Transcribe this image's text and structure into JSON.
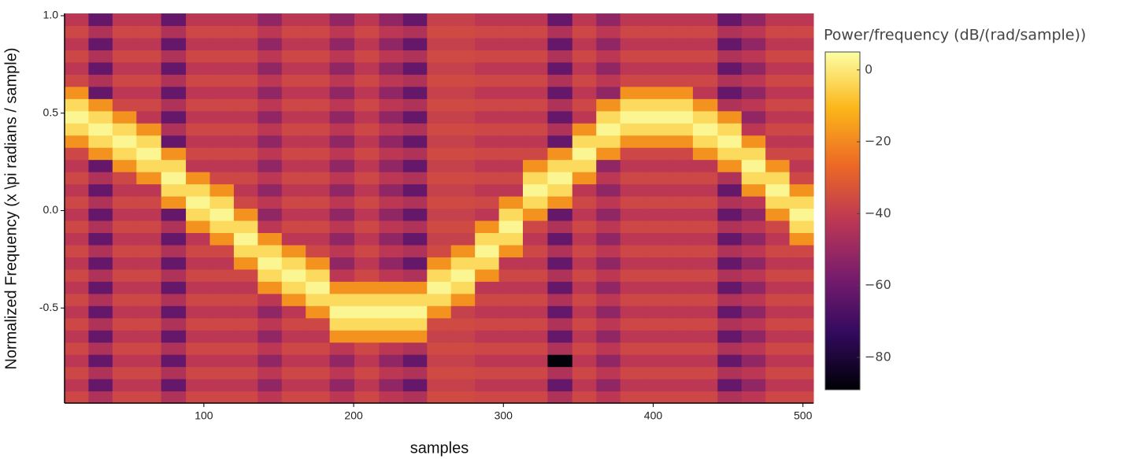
{
  "chart_data": {
    "type": "heatmap",
    "xlabel": "samples",
    "ylabel": "Normalized Frequency (x \\pi radians / sample)",
    "x": [
      15,
      31,
      47,
      63,
      80,
      96,
      112,
      128,
      144,
      160,
      176,
      192,
      209,
      225,
      241,
      257,
      273,
      289,
      305,
      321,
      338,
      354,
      370,
      386,
      402,
      418,
      435,
      451,
      467,
      483,
      499
    ],
    "y": [
      -0.957,
      -0.8945,
      -0.832,
      -0.7695,
      -0.707,
      -0.6445,
      -0.582,
      -0.5195,
      -0.457,
      -0.3945,
      -0.332,
      -0.2695,
      -0.207,
      -0.1445,
      -0.082,
      -0.0195,
      0.043,
      0.1055,
      0.168,
      0.2305,
      0.293,
      0.3555,
      0.418,
      0.4805,
      0.543,
      0.6055,
      0.668,
      0.7305,
      0.793,
      0.8555,
      0.918,
      0.9805
    ],
    "xlim": [
      7,
      507
    ],
    "ylim": [
      -0.988,
      1.012
    ],
    "xticks": [
      100,
      200,
      300,
      400,
      500
    ],
    "yticks": [
      {
        "value": 1,
        "label": "1.0"
      },
      0.5,
      {
        "value": 0,
        "label": "0.0"
      },
      -0.5
    ],
    "colorscale": [
      "#000004",
      "#320a5e",
      "#781c6d",
      "#bc3754",
      "#ed6925",
      "#fbb61a",
      "#fcffa4"
    ],
    "colorbar": {
      "title": "Power/frequency (dB/(rad/sample))",
      "zlim": [
        -89,
        5
      ],
      "ticks": [
        0,
        {
          "value": -20,
          "label": "−20"
        },
        {
          "value": -40,
          "label": "−40"
        },
        {
          "value": -60,
          "label": "−60"
        },
        {
          "value": -80,
          "label": "−80"
        }
      ]
    },
    "z": [
      [
        -37,
        -45,
        -37,
        -37,
        -45,
        -37,
        -37,
        -37,
        -42,
        -37,
        -37,
        -42,
        -37,
        -42,
        -45,
        -36,
        -36,
        -37,
        -37,
        -37,
        -45,
        -37,
        -42,
        -37,
        -37,
        -37,
        -37,
        -45,
        -42,
        -37,
        -37
      ],
      [
        -42,
        -62,
        -42,
        -42,
        -62,
        -42,
        -42,
        -42,
        -52,
        -42,
        -42,
        -52,
        -42,
        -52,
        -62,
        -39,
        -39,
        -42,
        -42,
        -42,
        -62,
        -42,
        -52,
        -42,
        -42,
        -42,
        -42,
        -62,
        -52,
        -42,
        -42
      ],
      [
        -37,
        -45,
        -37,
        -37,
        -45,
        -37,
        -37,
        -37,
        -42,
        -37,
        -37,
        -42,
        -37,
        -42,
        -45,
        -36,
        -36,
        -37,
        -37,
        -37,
        -45,
        -37,
        -42,
        -37,
        -37,
        -37,
        -37,
        -45,
        -42,
        -37,
        -37
      ],
      [
        -42,
        -62,
        -42,
        -42,
        -62,
        -42,
        -42,
        -42,
        -52,
        -42,
        -42,
        -52,
        -42,
        -52,
        -62,
        -39,
        -39,
        -42,
        -42,
        -42,
        -88,
        -42,
        -52,
        -42,
        -42,
        -42,
        -42,
        -62,
        -52,
        -42,
        -42
      ],
      [
        -37,
        -45,
        -37,
        -37,
        -45,
        -37,
        -37,
        -37,
        -42,
        -37,
        -37,
        -42,
        -37,
        -42,
        -45,
        -36,
        -36,
        -37,
        -37,
        -37,
        -45,
        -37,
        -42,
        -37,
        -37,
        -37,
        -37,
        -45,
        -42,
        -37,
        -37
      ],
      [
        -42,
        -62,
        -42,
        -42,
        -62,
        -42,
        -42,
        -42,
        -52,
        -42,
        -42,
        -18,
        -18,
        -18,
        -18,
        -39,
        -39,
        -42,
        -42,
        -42,
        -62,
        -42,
        -52,
        -42,
        -42,
        -42,
        -42,
        -62,
        -52,
        -42,
        -42
      ],
      [
        -37,
        -45,
        -37,
        -37,
        -45,
        -37,
        -37,
        -37,
        -42,
        -37,
        -37,
        -3,
        -3,
        -3,
        -3,
        -36,
        -36,
        -37,
        -37,
        -37,
        -45,
        -37,
        -42,
        -37,
        -37,
        -37,
        -37,
        -45,
        -42,
        -37,
        -37
      ],
      [
        -42,
        -62,
        -42,
        -42,
        -62,
        -42,
        -42,
        -42,
        -52,
        -42,
        -18,
        3,
        3,
        3,
        3,
        -18,
        -39,
        -42,
        -42,
        -42,
        -62,
        -42,
        -52,
        -42,
        -42,
        -42,
        -42,
        -62,
        -52,
        -42,
        -42
      ],
      [
        -37,
        -45,
        -37,
        -37,
        -45,
        -37,
        -37,
        -37,
        -42,
        -18,
        -3,
        -3,
        -3,
        -3,
        -3,
        -3,
        -18,
        -37,
        -37,
        -37,
        -45,
        -37,
        -42,
        -37,
        -37,
        -37,
        -37,
        -45,
        -42,
        -37,
        -37
      ],
      [
        -42,
        -62,
        -42,
        -42,
        -62,
        -42,
        -42,
        -42,
        -18,
        -3,
        3,
        -18,
        -18,
        -18,
        -18,
        3,
        -3,
        -42,
        -42,
        -42,
        -62,
        -42,
        -52,
        -42,
        -42,
        -42,
        -42,
        -62,
        -52,
        -42,
        -42
      ],
      [
        -37,
        -45,
        -37,
        -37,
        -45,
        -37,
        -37,
        -37,
        -3,
        3,
        -3,
        -42,
        -37,
        -42,
        -45,
        -3,
        3,
        -18,
        -37,
        -37,
        -45,
        -37,
        -42,
        -37,
        -37,
        -37,
        -37,
        -45,
        -42,
        -37,
        -37
      ],
      [
        -42,
        -62,
        -42,
        -42,
        -62,
        -42,
        -42,
        -18,
        3,
        -3,
        -18,
        -52,
        -42,
        -52,
        -62,
        -18,
        -3,
        -3,
        -42,
        -42,
        -62,
        -42,
        -52,
        -42,
        -42,
        -42,
        -42,
        -62,
        -52,
        -42,
        -42
      ],
      [
        -37,
        -45,
        -37,
        -37,
        -45,
        -37,
        -37,
        -3,
        -3,
        -18,
        -37,
        -42,
        -37,
        -42,
        -45,
        -36,
        -18,
        3,
        -18,
        -37,
        -45,
        -37,
        -42,
        -37,
        -37,
        -37,
        -37,
        -45,
        -42,
        -37,
        -37
      ],
      [
        -42,
        -62,
        -42,
        -42,
        -62,
        -42,
        -18,
        3,
        -18,
        -42,
        -42,
        -52,
        -42,
        -52,
        -62,
        -39,
        -39,
        -3,
        -3,
        -42,
        -62,
        -42,
        -52,
        -42,
        -42,
        -42,
        -42,
        -62,
        -52,
        -42,
        -18
      ],
      [
        -37,
        -45,
        -37,
        -37,
        -45,
        -18,
        -3,
        -3,
        -42,
        -37,
        -37,
        -42,
        -37,
        -42,
        -45,
        -36,
        -36,
        -18,
        3,
        -37,
        -45,
        -37,
        -42,
        -37,
        -37,
        -37,
        -37,
        -45,
        -42,
        -37,
        -3
      ],
      [
        -42,
        -62,
        -42,
        -42,
        -62,
        -3,
        3,
        -18,
        -52,
        -42,
        -42,
        -52,
        -42,
        -52,
        -62,
        -39,
        -39,
        -42,
        -3,
        -18,
        -62,
        -42,
        -52,
        -42,
        -42,
        -42,
        -42,
        -62,
        -52,
        -18,
        3
      ],
      [
        -37,
        -45,
        -37,
        -37,
        -18,
        3,
        -3,
        -37,
        -42,
        -37,
        -37,
        -42,
        -37,
        -42,
        -45,
        -36,
        -36,
        -37,
        -18,
        -3,
        -18,
        -37,
        -42,
        -37,
        -37,
        -37,
        -37,
        -45,
        -42,
        -3,
        -3
      ],
      [
        -42,
        -62,
        -42,
        -42,
        -3,
        -3,
        -18,
        -42,
        -52,
        -42,
        -42,
        -52,
        -42,
        -52,
        -62,
        -39,
        -39,
        -42,
        -42,
        3,
        -3,
        -42,
        -52,
        -42,
        -42,
        -42,
        -42,
        -62,
        -18,
        3,
        -18
      ],
      [
        -37,
        -45,
        -37,
        -18,
        3,
        -18,
        -37,
        -37,
        -42,
        -37,
        -37,
        -42,
        -37,
        -42,
        -45,
        -36,
        -36,
        -37,
        -37,
        -3,
        3,
        -18,
        -42,
        -37,
        -37,
        -37,
        -37,
        -45,
        -3,
        -3,
        -37
      ],
      [
        -42,
        -62,
        -18,
        -3,
        -3,
        -42,
        -42,
        -42,
        -52,
        -42,
        -42,
        -52,
        -42,
        -52,
        -62,
        -39,
        -39,
        -42,
        -42,
        -18,
        -3,
        -3,
        -52,
        -42,
        -42,
        -42,
        -42,
        -18,
        3,
        -18,
        -42
      ],
      [
        -37,
        -18,
        -3,
        3,
        -18,
        -37,
        -37,
        -37,
        -42,
        -37,
        -37,
        -42,
        -37,
        -42,
        -45,
        -36,
        -36,
        -37,
        -37,
        -37,
        -18,
        3,
        -18,
        -37,
        -37,
        -37,
        -18,
        -3,
        -3,
        -37,
        -37
      ],
      [
        -18,
        -3,
        3,
        -3,
        -62,
        -42,
        -42,
        -42,
        -52,
        -42,
        -42,
        -52,
        -42,
        -52,
        -62,
        -39,
        -39,
        -42,
        -42,
        -42,
        -62,
        -3,
        -3,
        -18,
        -18,
        -18,
        -3,
        3,
        -18,
        -42,
        -42
      ],
      [
        -3,
        3,
        -3,
        -18,
        -45,
        -37,
        -37,
        -37,
        -42,
        -37,
        -37,
        -42,
        -37,
        -42,
        -45,
        -36,
        -36,
        -37,
        -37,
        -37,
        -45,
        -18,
        3,
        -3,
        -3,
        -3,
        3,
        -3,
        -42,
        -37,
        -37
      ],
      [
        3,
        -3,
        -18,
        -42,
        -62,
        -42,
        -42,
        -42,
        -52,
        -42,
        -42,
        -52,
        -42,
        -52,
        -62,
        -39,
        -39,
        -42,
        -42,
        -42,
        -62,
        -42,
        -3,
        3,
        3,
        3,
        -3,
        -18,
        -52,
        -42,
        -42
      ],
      [
        -3,
        -18,
        -37,
        -37,
        -45,
        -37,
        -37,
        -37,
        -42,
        -37,
        -37,
        -42,
        -37,
        -42,
        -45,
        -36,
        -36,
        -37,
        -37,
        -37,
        -45,
        -37,
        -18,
        -3,
        -3,
        -3,
        -18,
        -45,
        -42,
        -37,
        -37
      ],
      [
        -18,
        -62,
        -42,
        -42,
        -62,
        -42,
        -42,
        -42,
        -52,
        -42,
        -42,
        -52,
        -42,
        -52,
        -62,
        -39,
        -39,
        -42,
        -42,
        -42,
        -62,
        -42,
        -52,
        -18,
        -18,
        -18,
        -42,
        -62,
        -52,
        -42,
        -42
      ],
      [
        -37,
        -45,
        -37,
        -37,
        -45,
        -37,
        -37,
        -37,
        -42,
        -37,
        -37,
        -42,
        -37,
        -42,
        -45,
        -36,
        -36,
        -37,
        -37,
        -37,
        -45,
        -37,
        -42,
        -37,
        -37,
        -37,
        -37,
        -45,
        -42,
        -37,
        -37
      ],
      [
        -42,
        -62,
        -42,
        -42,
        -62,
        -42,
        -42,
        -42,
        -52,
        -42,
        -42,
        -52,
        -42,
        -52,
        -62,
        -39,
        -39,
        -42,
        -42,
        -42,
        -62,
        -42,
        -52,
        -42,
        -42,
        -42,
        -42,
        -62,
        -52,
        -42,
        -42
      ],
      [
        -37,
        -45,
        -37,
        -37,
        -45,
        -37,
        -37,
        -37,
        -42,
        -37,
        -37,
        -42,
        -37,
        -42,
        -45,
        -36,
        -36,
        -37,
        -37,
        -37,
        -45,
        -37,
        -42,
        -37,
        -37,
        -37,
        -37,
        -45,
        -42,
        -37,
        -37
      ],
      [
        -42,
        -62,
        -42,
        -42,
        -62,
        -42,
        -42,
        -42,
        -52,
        -42,
        -42,
        -52,
        -42,
        -52,
        -62,
        -39,
        -39,
        -42,
        -42,
        -42,
        -62,
        -42,
        -52,
        -42,
        -42,
        -42,
        -42,
        -62,
        -52,
        -42,
        -42
      ],
      [
        -37,
        -45,
        -37,
        -37,
        -45,
        -37,
        -37,
        -37,
        -42,
        -37,
        -37,
        -42,
        -37,
        -42,
        -45,
        -36,
        -36,
        -37,
        -37,
        -37,
        -45,
        -37,
        -42,
        -37,
        -37,
        -37,
        -37,
        -45,
        -42,
        -37,
        -37
      ],
      [
        -42,
        -62,
        -42,
        -42,
        -62,
        -42,
        -42,
        -42,
        -52,
        -42,
        -42,
        -52,
        -42,
        -52,
        -62,
        -39,
        -39,
        -42,
        -42,
        -42,
        -62,
        -42,
        -52,
        -42,
        -42,
        -42,
        -42,
        -62,
        -52,
        -42,
        -42
      ]
    ]
  }
}
